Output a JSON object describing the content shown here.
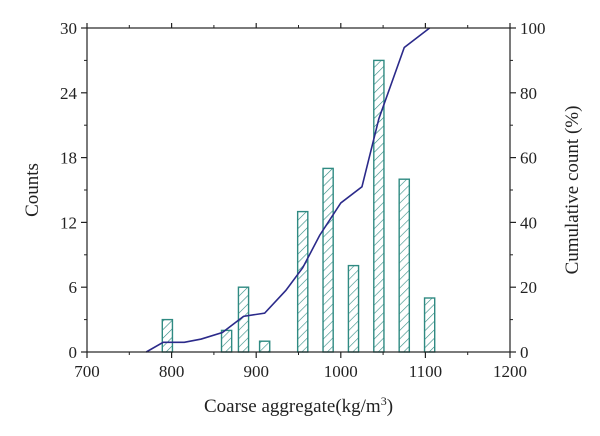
{
  "chart_data": {
    "type": "bar",
    "title": "",
    "xlabel": "Coarse aggregate(kg/m",
    "xlabel_sup": "3",
    "xlabel_suffix": ")",
    "ylabel": "Counts",
    "y2label": "Cumulative count (%)",
    "xlim": [
      700,
      1200
    ],
    "ylim": [
      0,
      30
    ],
    "y2lim": [
      0,
      100
    ],
    "xticks": [
      "700",
      "800",
      "900",
      "1000",
      "1100",
      "1200"
    ],
    "yticks": [
      "0",
      "6",
      "12",
      "18",
      "24",
      "30"
    ],
    "y2ticks": [
      "0",
      "20",
      "40",
      "60",
      "80",
      "100"
    ],
    "bar_width": 12,
    "bars": [
      {
        "x": 795,
        "count": 3
      },
      {
        "x": 865,
        "count": 2
      },
      {
        "x": 885,
        "count": 6
      },
      {
        "x": 910,
        "count": 1
      },
      {
        "x": 955,
        "count": 13
      },
      {
        "x": 985,
        "count": 17
      },
      {
        "x": 1015,
        "count": 8
      },
      {
        "x": 1045,
        "count": 27
      },
      {
        "x": 1075,
        "count": 16
      },
      {
        "x": 1105,
        "count": 5
      }
    ],
    "cumulative": [
      {
        "x": 770,
        "y": 0
      },
      {
        "x": 790,
        "y": 3
      },
      {
        "x": 815,
        "y": 3
      },
      {
        "x": 835,
        "y": 4
      },
      {
        "x": 860,
        "y": 6
      },
      {
        "x": 885,
        "y": 11
      },
      {
        "x": 910,
        "y": 12
      },
      {
        "x": 935,
        "y": 19
      },
      {
        "x": 955,
        "y": 26
      },
      {
        "x": 975,
        "y": 36
      },
      {
        "x": 1000,
        "y": 46
      },
      {
        "x": 1025,
        "y": 51
      },
      {
        "x": 1045,
        "y": 72
      },
      {
        "x": 1075,
        "y": 94
      },
      {
        "x": 1100,
        "y": 99
      },
      {
        "x": 1105,
        "y": 100
      }
    ],
    "colors": {
      "bar_stroke": "#2f8a82",
      "bar_hatch": "#2f8a82",
      "line": "#2b2a8a",
      "axis": "#222222"
    },
    "grid": false
  }
}
